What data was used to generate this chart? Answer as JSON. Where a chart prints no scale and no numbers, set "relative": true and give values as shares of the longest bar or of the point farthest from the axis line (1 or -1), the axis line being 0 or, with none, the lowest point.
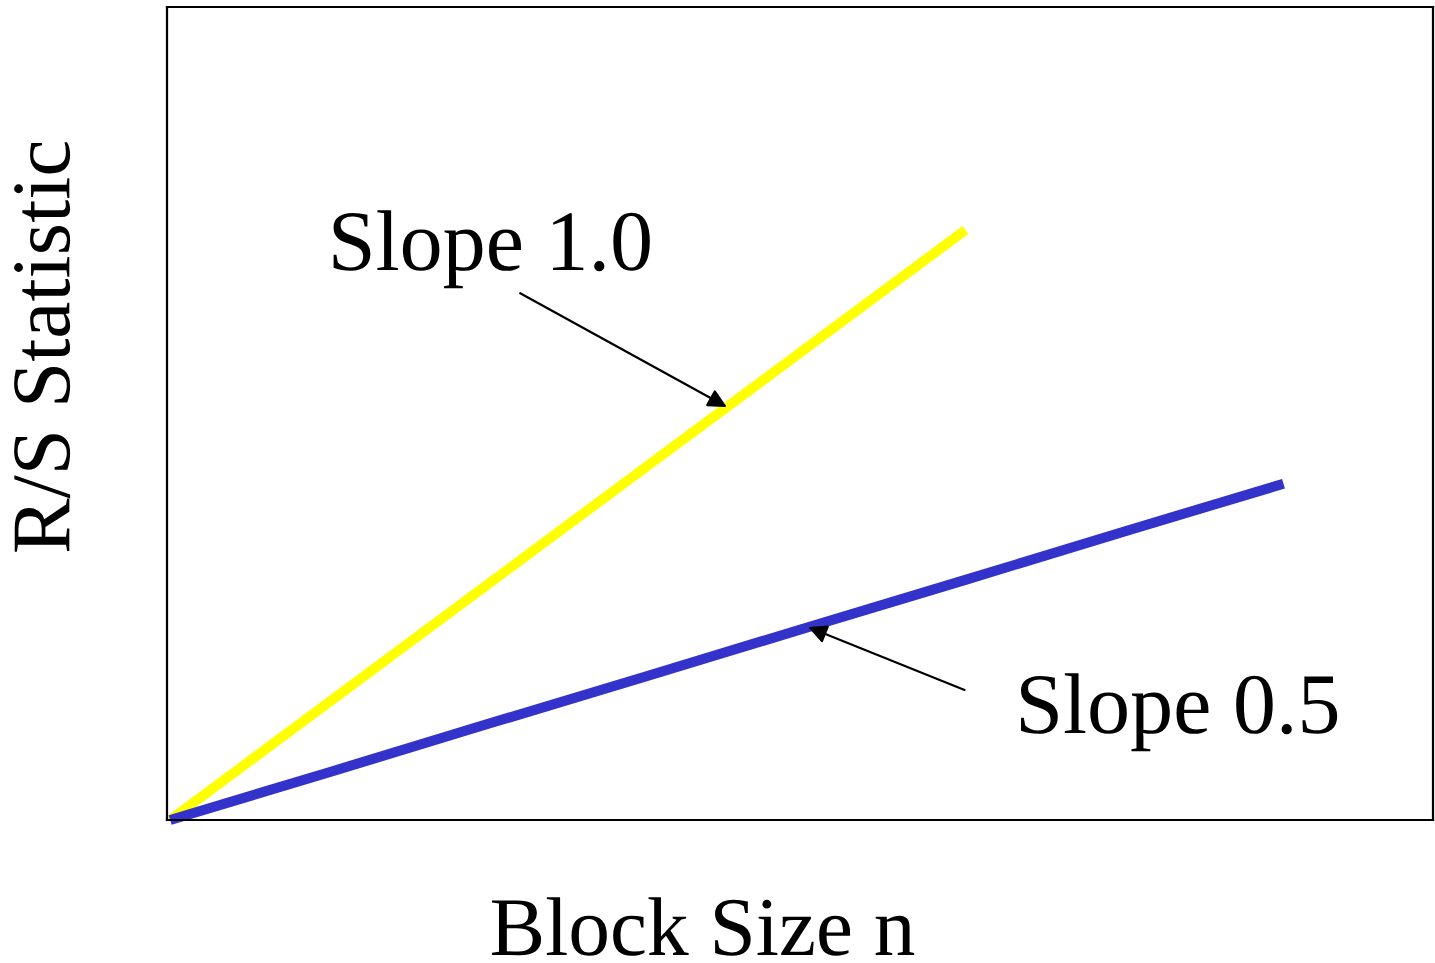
{
  "chart_data": {
    "type": "line",
    "relative": true,
    "xlabel": "Block Size n",
    "ylabel": "R/S Statistic",
    "categories": [
      null,
      null,
      null,
      null,
      null,
      null,
      null,
      null
    ],
    "series": [
      {
        "color": "#ffff00",
        "values": [
          0,
          0.2,
          0.4,
          0.6,
          0.8,
          1,
          null,
          null
        ]
      },
      {
        "color": "#3333cc",
        "values": [
          0,
          0.081,
          0.163,
          0.244,
          0.326,
          0.407,
          0.489,
          0.57
        ]
      }
    ],
    "annotations": [
      "Slope 1.0",
      "Slope 0.5"
    ],
    "line_style": "solid"
  }
}
